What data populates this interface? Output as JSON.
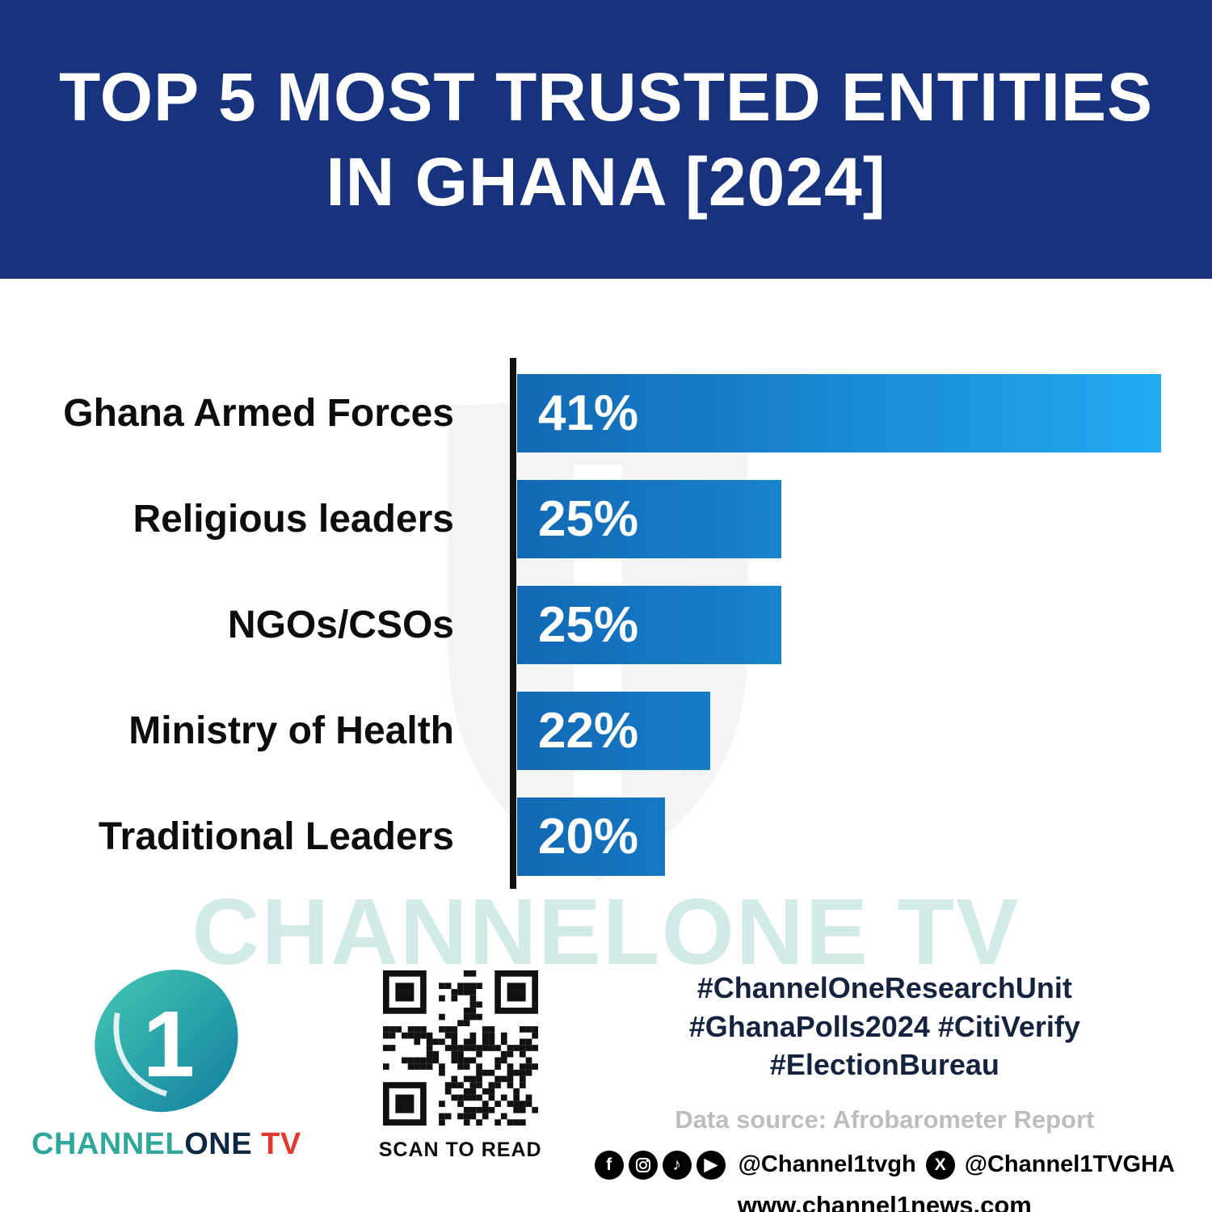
{
  "header": {
    "title_line1": "TOP 5 MOST TRUSTED ENTITIES",
    "title_line2": "IN GHANA [2024]"
  },
  "chart_data": {
    "type": "bar",
    "orientation": "horizontal",
    "title": "TOP 5 MOST TRUSTED ENTITIES IN GHANA [2024]",
    "categories": [
      "Ghana Armed Forces",
      "Religious leaders",
      "NGOs/CSOs",
      "Ministry of Health",
      "Traditional Leaders"
    ],
    "values": [
      41,
      25,
      25,
      22,
      20
    ],
    "value_labels": [
      "41%",
      "25%",
      "25%",
      "22%",
      "20%"
    ],
    "bar_widths_pct": [
      100,
      41,
      41,
      30,
      23
    ],
    "xlim": [
      0,
      41
    ],
    "grid": false,
    "legend": false
  },
  "watermark": {
    "text": "CHANNELONE TV"
  },
  "footer": {
    "logo_numeral": "1",
    "brand": {
      "channel": "CHANNEL",
      "one": "ONE",
      "tv": " TV"
    },
    "qr_label": "SCAN TO READ",
    "hashtags": [
      "#ChannelOneResearchUnit",
      "#GhanaPolls2024 #CitiVerify",
      "#ElectionBureau"
    ],
    "data_source": "Data source: Afrobarometer Report",
    "social": {
      "handle_primary": "@Channel1tvgh",
      "handle_x": "@Channel1TVGHA",
      "icons": [
        "facebook",
        "instagram",
        "tiktok",
        "youtube",
        "x"
      ]
    },
    "website": "www.channel1news.com"
  },
  "colors": {
    "header_bg": "#17337E",
    "bar_start": "#1268B4",
    "bar_end": "#21AAF2",
    "watermark_color": "#D3EBE6",
    "hashtag_color": "#16233F",
    "source_gray": "#BDBDBD",
    "brand_teal": "#2FA79A",
    "brand_navy": "#0E2742",
    "brand_red": "#E03A2F"
  }
}
